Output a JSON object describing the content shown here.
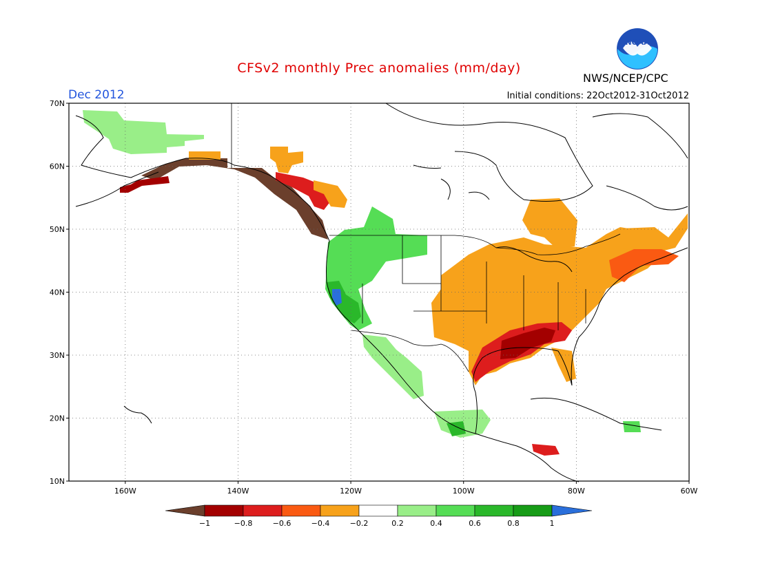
{
  "header": {
    "title": "CFSv2 monthly Prec anomalies (mm/day)",
    "month": "Dec 2012",
    "initial_conditions": "Initial conditions: 22Oct2012-31Oct2012",
    "agency": "NWS/NCEP/CPC",
    "logo_text": "NOAA"
  },
  "map": {
    "lon_range": [
      -170,
      -60
    ],
    "lat_range": [
      10,
      70
    ],
    "lat_labels": [
      "10N",
      "20N",
      "30N",
      "40N",
      "50N",
      "60N",
      "70N"
    ],
    "lon_labels": [
      "160W",
      "140W",
      "120W",
      "100W",
      "80W",
      "60W"
    ]
  },
  "legend": {
    "labels": [
      "−1",
      "−0.8",
      "−0.6",
      "−0.4",
      "−0.2",
      "0.2",
      "0.4",
      "0.6",
      "0.8",
      "1"
    ],
    "colors": {
      "lt_-1": "#6b3f2c",
      "-1_-0.8": "#a30000",
      "-0.8_-0.6": "#dd1d1d",
      "-0.6_-0.4": "#fa5a12",
      "-0.4_-0.2": "#f7a21b",
      "-0.2_0.2": "#ffffff",
      "0.2_0.4": "#99ee88",
      "0.4_0.6": "#55dd55",
      "0.6_0.8": "#2ab82a",
      "0.8_1": "#179c17",
      "gt_1": "#2a6fdb"
    }
  }
}
